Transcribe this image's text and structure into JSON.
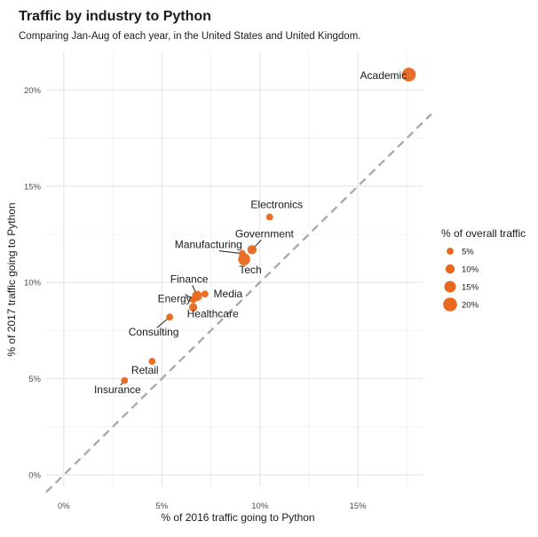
{
  "chart_data": {
    "type": "scatter",
    "title": "Traffic by industry to Python",
    "subtitle": "Comparing Jan-Aug of each year, in the United States and United Kingdom.",
    "xlabel": "% of 2016 traffic going to Python",
    "ylabel": "% of 2017 traffic going to Python",
    "xlim": [
      -0.009,
      0.183
    ],
    "ylim": [
      -0.006,
      0.22
    ],
    "xticks": [
      0,
      0.05,
      0.1,
      0.15
    ],
    "xtick_labels": [
      "0%",
      "5%",
      "10%",
      "15%"
    ],
    "yticks": [
      0,
      0.05,
      0.1,
      0.15,
      0.2
    ],
    "ytick_labels": [
      "0%",
      "5%",
      "10%",
      "15%",
      "20%"
    ],
    "grid": true,
    "reference_line": {
      "type": "y = x",
      "style": "dashed",
      "color": "#aaaaaa"
    },
    "point_color": "#e8681f",
    "points": [
      {
        "label": "Academic",
        "x": 0.176,
        "y": 0.208,
        "size": 0.2
      },
      {
        "label": "Electronics",
        "x": 0.105,
        "y": 0.134,
        "size": 0.05
      },
      {
        "label": "Government",
        "x": 0.096,
        "y": 0.117,
        "size": 0.1
      },
      {
        "label": "Manufacturing",
        "x": 0.091,
        "y": 0.115,
        "size": 0.05
      },
      {
        "label": "Tech",
        "x": 0.092,
        "y": 0.112,
        "size": 0.16
      },
      {
        "label": "Finance",
        "x": 0.068,
        "y": 0.093,
        "size": 0.12
      },
      {
        "label": "Media",
        "x": 0.072,
        "y": 0.094,
        "size": 0.05
      },
      {
        "label": "Energy",
        "x": 0.066,
        "y": 0.091,
        "size": 0.05
      },
      {
        "label": "Healthcare",
        "x": 0.066,
        "y": 0.087,
        "size": 0.08
      },
      {
        "label": "Consulting",
        "x": 0.054,
        "y": 0.082,
        "size": 0.05
      },
      {
        "label": "Retail",
        "x": 0.045,
        "y": 0.059,
        "size": 0.05
      },
      {
        "label": "Insurance",
        "x": 0.031,
        "y": 0.049,
        "size": 0.05
      }
    ],
    "legend": {
      "title": "% of overall traffic",
      "placement": "right",
      "entries": [
        {
          "label": "5%",
          "size": 0.05
        },
        {
          "label": "10%",
          "size": 0.1
        },
        {
          "label": "15%",
          "size": 0.15
        },
        {
          "label": "20%",
          "size": 0.2
        }
      ]
    }
  }
}
